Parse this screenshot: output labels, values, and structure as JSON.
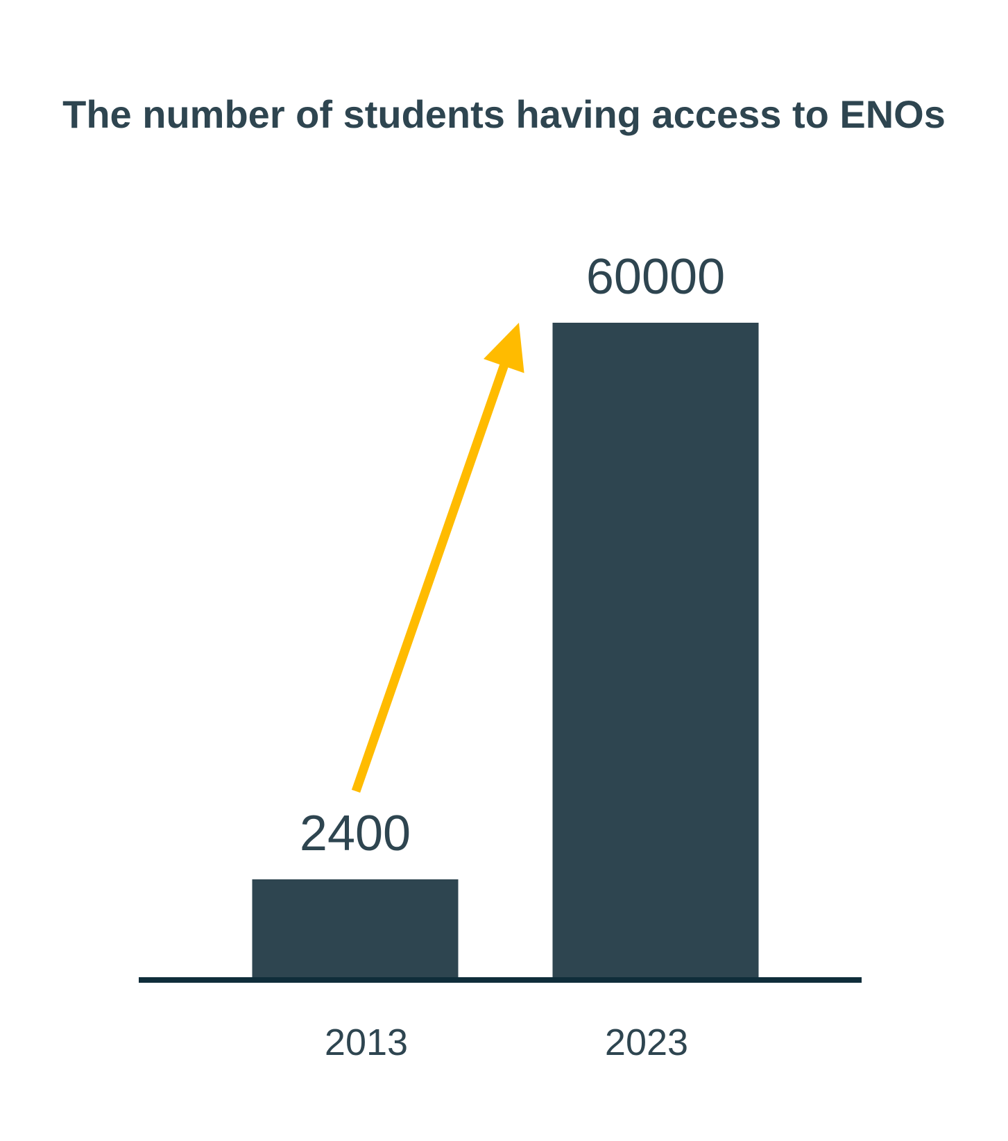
{
  "chart_data": {
    "type": "bar",
    "title": "The number of students having access to ENOs",
    "categories": [
      "2013",
      "2023"
    ],
    "values": [
      2400,
      60000
    ],
    "data_labels": [
      "2400",
      "60000"
    ],
    "xlabel": "",
    "ylabel": "",
    "ylim": [
      0,
      60000
    ],
    "grid": false,
    "legend": "none",
    "annotation": "increase-arrow",
    "colors": {
      "bar": "#2e4550",
      "baseline": "#0f2d3a",
      "arrow": "#ffbb00",
      "text": "#2e4550"
    }
  }
}
